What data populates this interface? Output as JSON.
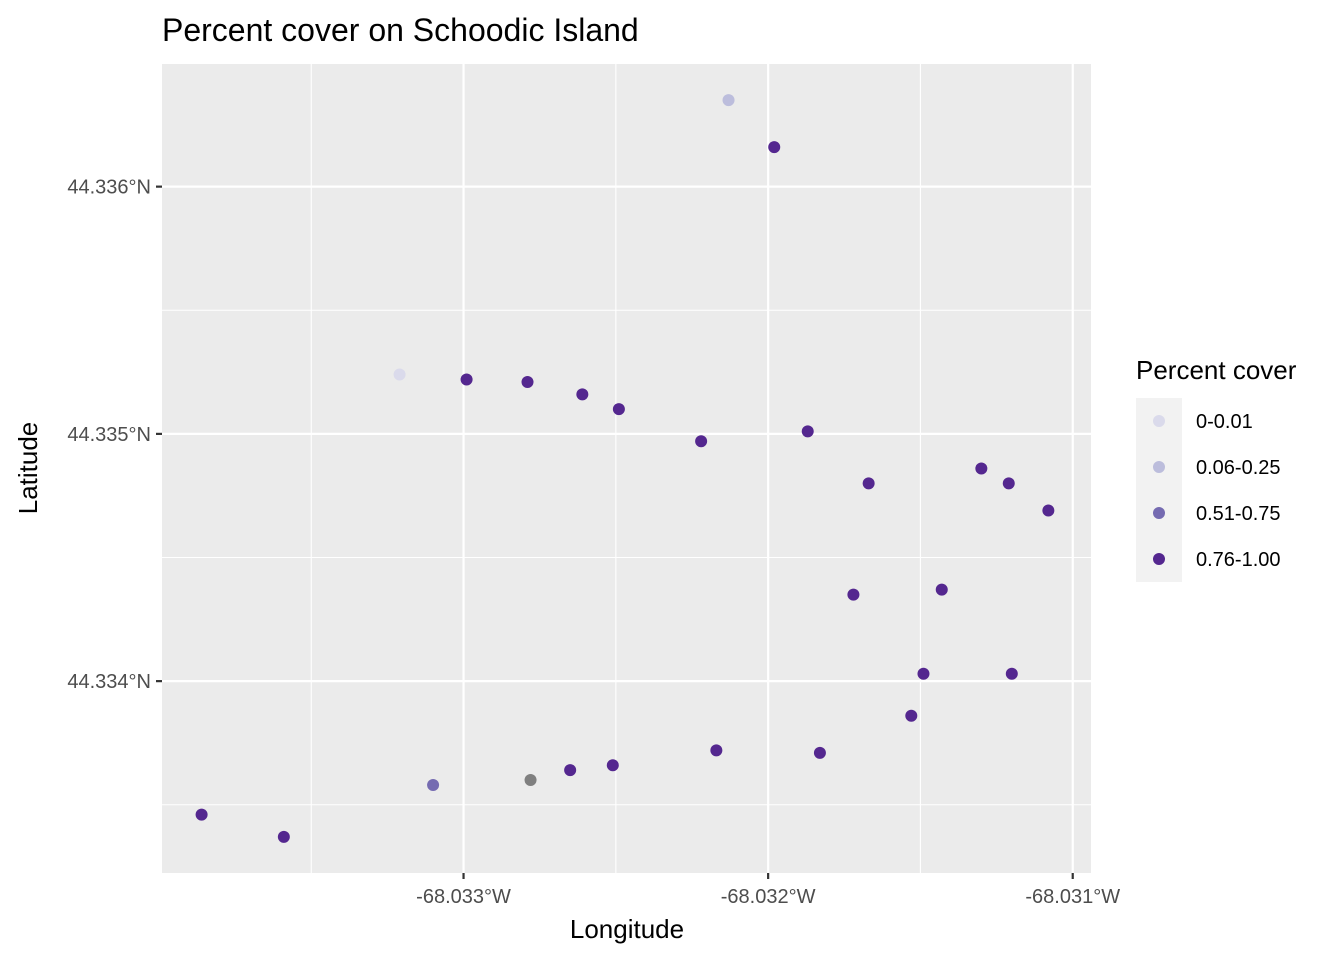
{
  "chart_data": {
    "type": "scatter",
    "title": "Percent cover on Schoodic Island",
    "xlabel": "Longitude",
    "ylabel": "Latitude",
    "xlim": [
      -68.03399,
      -68.03094
    ],
    "ylim": [
      44.333224,
      44.336496
    ],
    "x_ticks": [
      {
        "value": -68.033,
        "label": "-68.033°W"
      },
      {
        "value": -68.032,
        "label": "-68.032°W"
      },
      {
        "value": -68.031,
        "label": "-68.031°W"
      }
    ],
    "y_ticks": [
      {
        "value": 44.334,
        "label": "44.334°N"
      },
      {
        "value": 44.335,
        "label": "44.335°N"
      },
      {
        "value": 44.336,
        "label": "44.336°N"
      }
    ],
    "x_minor": [
      -68.0335,
      -68.0325,
      -68.0315
    ],
    "y_minor": [
      44.3335,
      44.3345,
      44.3355
    ],
    "grid": true,
    "legend": {
      "title": "Percent cover",
      "placement": "right",
      "entries": [
        {
          "label": "0-0.01",
          "color": "#dadaeb"
        },
        {
          "label": "0.06-0.25",
          "color": "#bcbddc"
        },
        {
          "label": "0.51-0.75",
          "color": "#756bb1"
        },
        {
          "label": "0.76-1.00",
          "color": "#54278f"
        }
      ]
    },
    "na_color": "#7f7f7f",
    "points": [
      {
        "lon": -68.03213,
        "lat": 44.33635,
        "cover": "0.06-0.25"
      },
      {
        "lon": -68.03198,
        "lat": 44.33616,
        "cover": "0.76-1.00"
      },
      {
        "lon": -68.03321,
        "lat": 44.33524,
        "cover": "0-0.01"
      },
      {
        "lon": -68.03299,
        "lat": 44.33522,
        "cover": "0.76-1.00"
      },
      {
        "lon": -68.03279,
        "lat": 44.33521,
        "cover": "0.76-1.00"
      },
      {
        "lon": -68.03261,
        "lat": 44.33516,
        "cover": "0.76-1.00"
      },
      {
        "lon": -68.03249,
        "lat": 44.3351,
        "cover": "0.76-1.00"
      },
      {
        "lon": -68.03222,
        "lat": 44.33497,
        "cover": "0.76-1.00"
      },
      {
        "lon": -68.03187,
        "lat": 44.33501,
        "cover": "0.76-1.00"
      },
      {
        "lon": -68.03167,
        "lat": 44.3348,
        "cover": "0.76-1.00"
      },
      {
        "lon": -68.0313,
        "lat": 44.33486,
        "cover": "0.76-1.00"
      },
      {
        "lon": -68.03121,
        "lat": 44.3348,
        "cover": "0.76-1.00"
      },
      {
        "lon": -68.03108,
        "lat": 44.33469,
        "cover": "0.76-1.00"
      },
      {
        "lon": -68.03172,
        "lat": 44.33435,
        "cover": "0.76-1.00"
      },
      {
        "lon": -68.03143,
        "lat": 44.33437,
        "cover": "0.76-1.00"
      },
      {
        "lon": -68.03149,
        "lat": 44.33403,
        "cover": "0.76-1.00"
      },
      {
        "lon": -68.0312,
        "lat": 44.33403,
        "cover": "0.76-1.00"
      },
      {
        "lon": -68.03153,
        "lat": 44.33386,
        "cover": "0.76-1.00"
      },
      {
        "lon": -68.03217,
        "lat": 44.33372,
        "cover": "0.76-1.00"
      },
      {
        "lon": -68.03183,
        "lat": 44.33371,
        "cover": "0.76-1.00"
      },
      {
        "lon": -68.03251,
        "lat": 44.33366,
        "cover": "0.76-1.00"
      },
      {
        "lon": -68.03265,
        "lat": 44.33364,
        "cover": "0.76-1.00"
      },
      {
        "lon": -68.03278,
        "lat": 44.3336,
        "cover": null
      },
      {
        "lon": -68.0331,
        "lat": 44.33358,
        "cover": "0.51-0.75"
      },
      {
        "lon": -68.03386,
        "lat": 44.33346,
        "cover": "0.76-1.00"
      },
      {
        "lon": -68.03359,
        "lat": 44.33337,
        "cover": "0.76-1.00"
      }
    ]
  }
}
